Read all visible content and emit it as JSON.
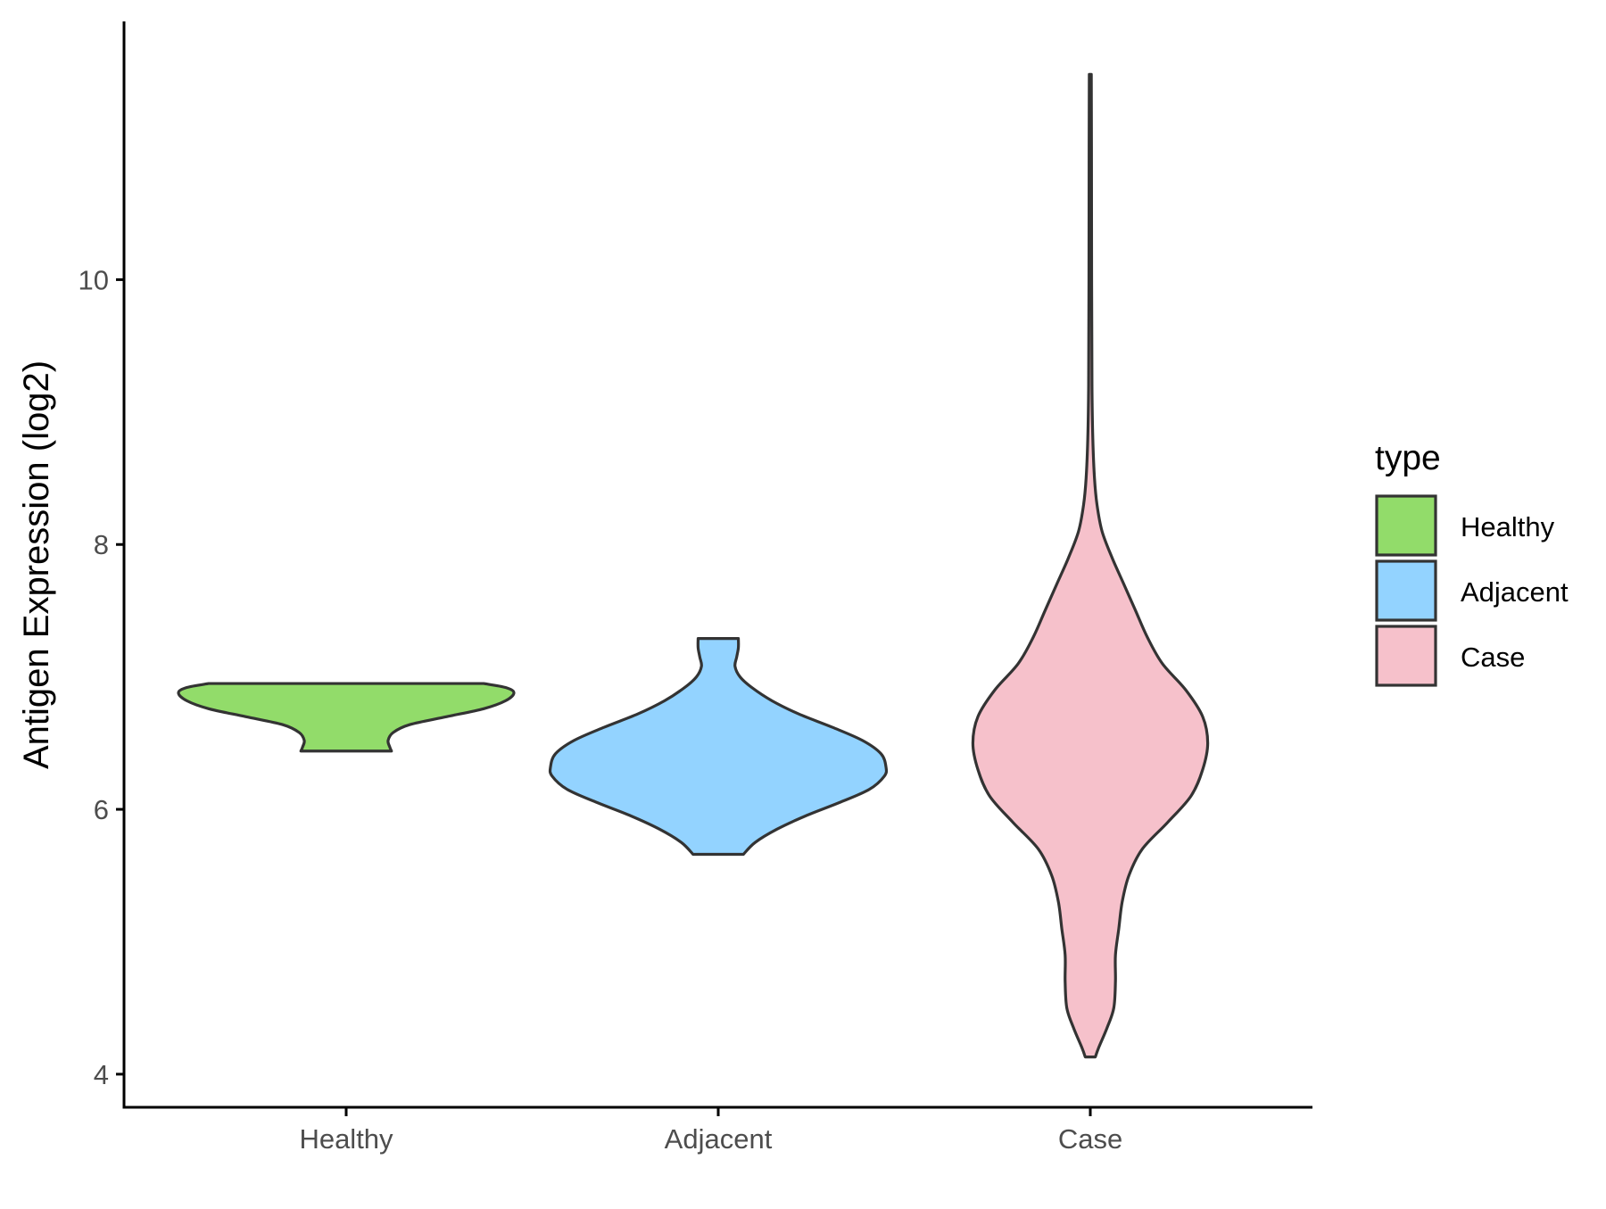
{
  "chart_data": {
    "type": "violin",
    "title": "",
    "xlabel": "",
    "ylabel": "Antigen Expression (log2)",
    "ylim": [
      3.75,
      11.95
    ],
    "yticks": [
      4,
      6,
      8,
      10
    ],
    "grid": false,
    "categories": [
      "Healthy",
      "Adjacent",
      "Case"
    ],
    "legend": {
      "title": "type",
      "position": "right",
      "items": [
        {
          "label": "Healthy",
          "color": "#92DC6A"
        },
        {
          "label": "Adjacent",
          "color": "#93D3FF"
        },
        {
          "label": "Case",
          "color": "#F6C1CB"
        }
      ]
    },
    "series": [
      {
        "category": "Healthy",
        "color": "#92DC6A",
        "min": 6.44,
        "max": 6.95,
        "profile": [
          [
            6.44,
            0.27
          ],
          [
            6.47,
            0.26
          ],
          [
            6.52,
            0.25
          ],
          [
            6.58,
            0.28
          ],
          [
            6.64,
            0.38
          ],
          [
            6.7,
            0.6
          ],
          [
            6.76,
            0.82
          ],
          [
            6.82,
            0.95
          ],
          [
            6.88,
            1.0
          ],
          [
            6.92,
            0.95
          ],
          [
            6.95,
            0.82
          ]
        ]
      },
      {
        "category": "Adjacent",
        "color": "#93D3FF",
        "min": 5.66,
        "max": 7.29,
        "profile": [
          [
            5.66,
            0.15
          ],
          [
            5.75,
            0.22
          ],
          [
            5.85,
            0.35
          ],
          [
            5.95,
            0.52
          ],
          [
            6.05,
            0.72
          ],
          [
            6.15,
            0.9
          ],
          [
            6.25,
            0.99
          ],
          [
            6.32,
            1.0
          ],
          [
            6.42,
            0.97
          ],
          [
            6.52,
            0.86
          ],
          [
            6.62,
            0.68
          ],
          [
            6.72,
            0.48
          ],
          [
            6.82,
            0.32
          ],
          [
            6.92,
            0.2
          ],
          [
            7.0,
            0.13
          ],
          [
            7.08,
            0.1
          ],
          [
            7.15,
            0.11
          ],
          [
            7.22,
            0.12
          ],
          [
            7.29,
            0.12
          ]
        ]
      },
      {
        "category": "Case",
        "color": "#F6C1CB",
        "min": 4.13,
        "max": 11.55,
        "profile": [
          [
            4.13,
            0.03
          ],
          [
            4.2,
            0.05
          ],
          [
            4.35,
            0.1
          ],
          [
            4.5,
            0.14
          ],
          [
            4.7,
            0.15
          ],
          [
            4.9,
            0.15
          ],
          [
            5.1,
            0.17
          ],
          [
            5.3,
            0.19
          ],
          [
            5.5,
            0.23
          ],
          [
            5.7,
            0.31
          ],
          [
            5.9,
            0.46
          ],
          [
            6.1,
            0.6
          ],
          [
            6.3,
            0.67
          ],
          [
            6.5,
            0.7
          ],
          [
            6.7,
            0.67
          ],
          [
            6.9,
            0.57
          ],
          [
            7.1,
            0.43
          ],
          [
            7.3,
            0.34
          ],
          [
            7.5,
            0.27
          ],
          [
            7.7,
            0.2
          ],
          [
            7.9,
            0.13
          ],
          [
            8.1,
            0.07
          ],
          [
            8.3,
            0.04
          ],
          [
            8.5,
            0.025
          ],
          [
            8.8,
            0.015
          ],
          [
            9.2,
            0.01
          ],
          [
            10.0,
            0.008
          ],
          [
            11.0,
            0.007
          ],
          [
            11.55,
            0.006
          ]
        ]
      }
    ]
  }
}
